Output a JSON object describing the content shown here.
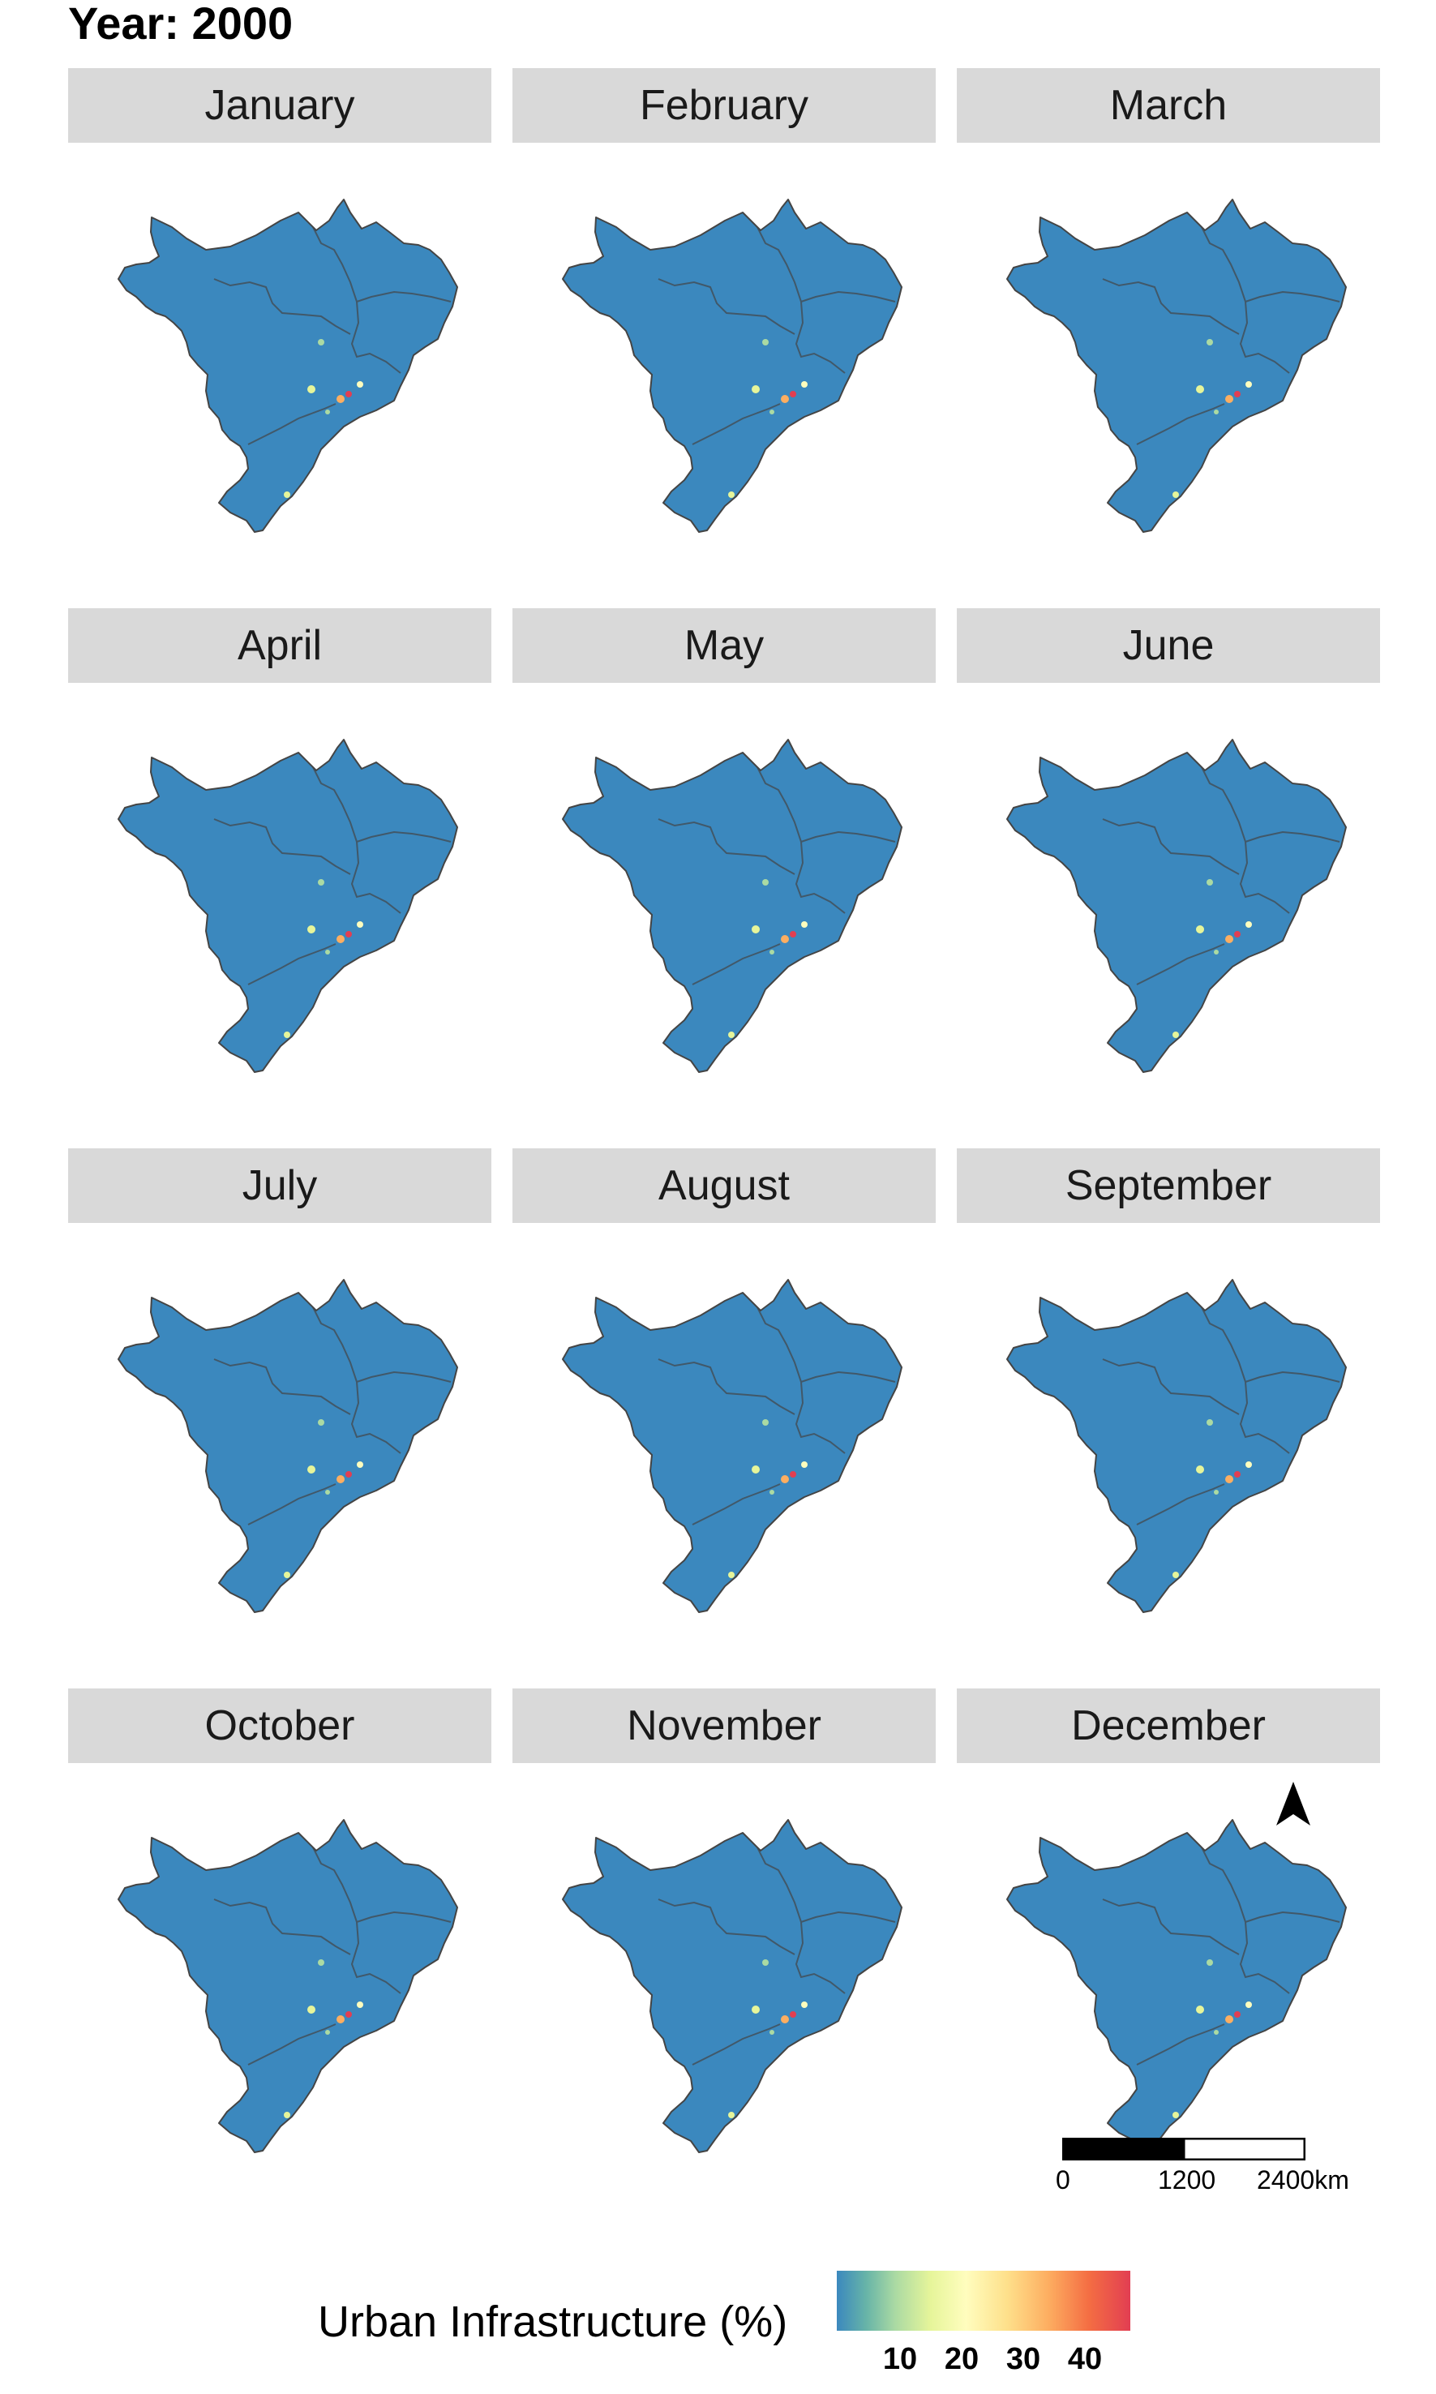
{
  "title": "Year: 2000",
  "panels": [
    {
      "label": "January"
    },
    {
      "label": "February"
    },
    {
      "label": "March"
    },
    {
      "label": "April"
    },
    {
      "label": "May"
    },
    {
      "label": "June"
    },
    {
      "label": "July"
    },
    {
      "label": "August"
    },
    {
      "label": "September"
    },
    {
      "label": "October"
    },
    {
      "label": "November"
    },
    {
      "label": "December"
    }
  ],
  "scalebar": {
    "labels": [
      "0",
      "1200",
      "2400km"
    ]
  },
  "legend": {
    "title": "Urban Infrastructure (%)",
    "ticks": [
      "10",
      "20",
      "30",
      "40"
    ],
    "base_color": "#3b88be",
    "colors": [
      "#3b88be",
      "#abdaa3",
      "#fffdbe",
      "#fdae61",
      "#e23e52"
    ]
  },
  "colors": {
    "strip": "#d9d9d9",
    "map_fill": "#3b88be",
    "border": "#444444"
  },
  "icons": {
    "north_arrow": "north-arrow-icon"
  }
}
